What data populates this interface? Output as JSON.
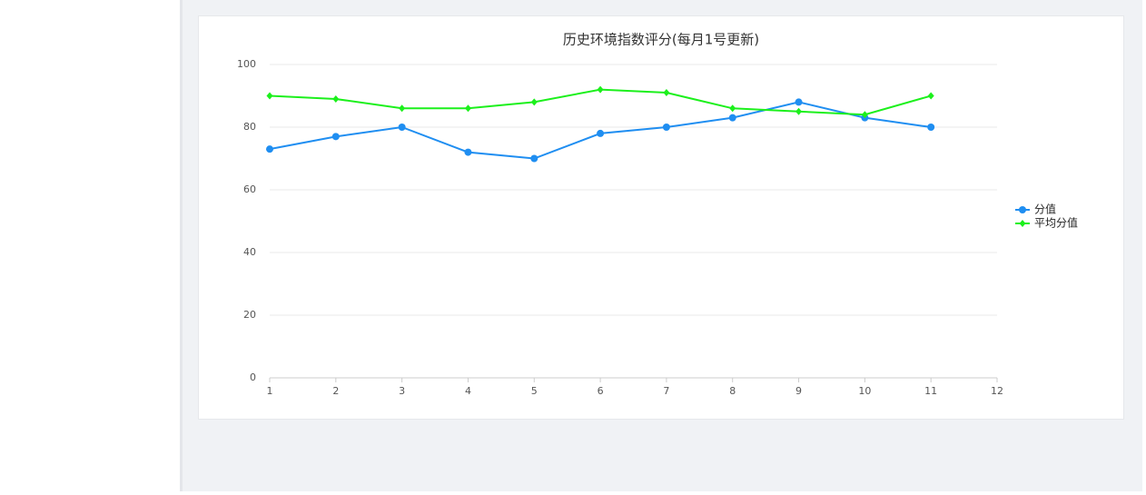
{
  "chart_data": {
    "type": "line",
    "title": "历史环境指数评分(每月1号更新)",
    "x": [
      1,
      2,
      3,
      4,
      5,
      6,
      7,
      8,
      9,
      10,
      11
    ],
    "series": [
      {
        "name": "分值",
        "color": "#1f8ef1",
        "marker": "circle",
        "values": [
          73,
          77,
          80,
          72,
          70,
          78,
          80,
          83,
          88,
          83,
          80
        ]
      },
      {
        "name": "平均分值",
        "color": "#1cf01c",
        "marker": "diamond",
        "values": [
          90,
          89,
          86,
          86,
          88,
          92,
          91,
          86,
          85,
          84,
          90
        ]
      }
    ],
    "xlim": [
      1,
      12
    ],
    "xticks": [
      1,
      2,
      3,
      4,
      5,
      6,
      7,
      8,
      9,
      10,
      11,
      12
    ],
    "ylim": [
      0,
      100
    ],
    "yticks": [
      0,
      20,
      40,
      60,
      80,
      100
    ],
    "grid": true,
    "legend": "right"
  }
}
